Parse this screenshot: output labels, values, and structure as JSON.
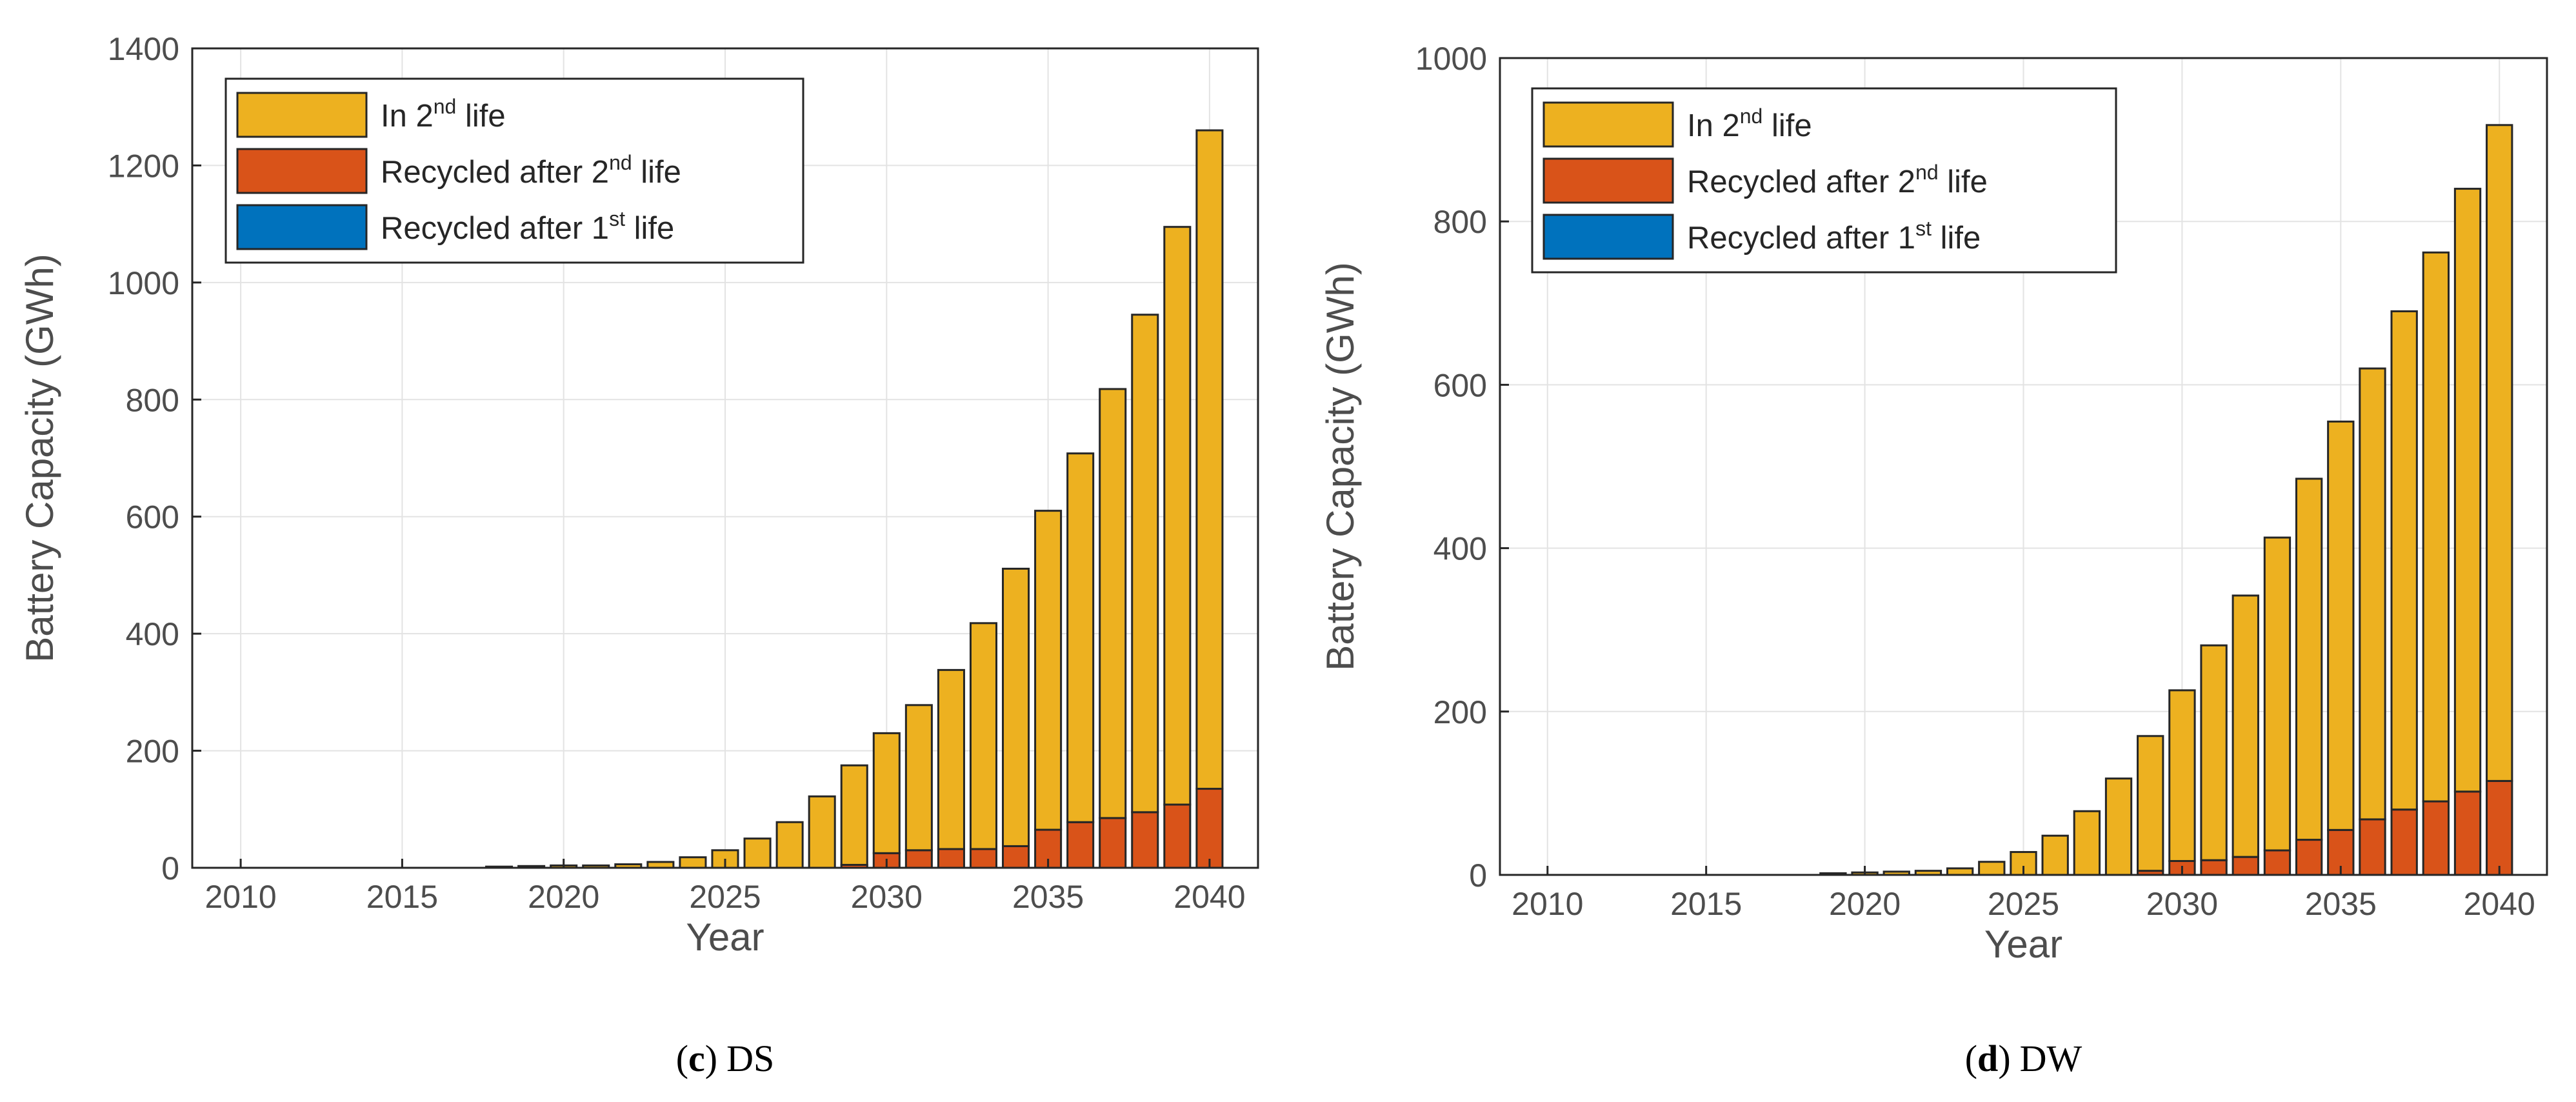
{
  "chart_data": [
    {
      "type": "bar",
      "stacked": true,
      "title": "",
      "xlabel": "Year",
      "ylabel": "Battery Capacity (GWh)",
      "xlim": [
        2008.5,
        2041.5
      ],
      "ylim": [
        0,
        1400
      ],
      "xticks": [
        "2010",
        "2015",
        "2020",
        "2025",
        "2030",
        "2035",
        "2040"
      ],
      "yticks": [
        "0",
        "200",
        "400",
        "600",
        "800",
        "1000",
        "1200",
        "1400"
      ],
      "grid": true,
      "legend_position": "top-left",
      "caption": {
        "open": "(",
        "letter": "c",
        "close": ")",
        "label": "DS"
      },
      "categories": [
        2018,
        2019,
        2020,
        2021,
        2022,
        2023,
        2024,
        2025,
        2026,
        2027,
        2028,
        2029,
        2030,
        2031,
        2032,
        2033,
        2034,
        2035,
        2036,
        2037,
        2038,
        2039,
        2040
      ],
      "series": [
        {
          "name": "Recycled after 1st life",
          "color": "#0072bd",
          "legend": {
            "pre": "Recycled  after  1",
            "sup": "st",
            "post": "  life"
          },
          "values": [
            0,
            0,
            0,
            0,
            0,
            0,
            0,
            0,
            0,
            0,
            0,
            0,
            0,
            0,
            0,
            0,
            0,
            0,
            0,
            0,
            0,
            0,
            0
          ]
        },
        {
          "name": "Recycled after 2nd life",
          "color": "#d95319",
          "legend": {
            "pre": "Recycled  after  2",
            "sup": "nd",
            "post": "  life"
          },
          "values": [
            0,
            0,
            0,
            0,
            0,
            0,
            0,
            0,
            0,
            0,
            0,
            5,
            25,
            30,
            32,
            32,
            37,
            65,
            78,
            85,
            95,
            108,
            135
          ]
        },
        {
          "name": "In 2nd life",
          "color": "#edb120",
          "legend": {
            "pre": "In  2",
            "sup": "nd",
            "post": "  life"
          },
          "values": [
            2,
            3,
            4,
            4,
            6,
            10,
            18,
            30,
            50,
            78,
            122,
            170,
            205,
            248,
            306,
            386,
            474,
            545,
            630,
            733,
            850,
            987,
            1125
          ]
        }
      ]
    },
    {
      "type": "bar",
      "stacked": true,
      "title": "",
      "xlabel": "Year",
      "ylabel": "Battery Capacity (GWh)",
      "xlim": [
        2008.5,
        2041.5
      ],
      "ylim": [
        0,
        1000
      ],
      "xticks": [
        "2010",
        "2015",
        "2020",
        "2025",
        "2030",
        "2035",
        "2040"
      ],
      "yticks": [
        "0",
        "200",
        "400",
        "600",
        "800",
        "1000"
      ],
      "grid": true,
      "legend_position": "top-left",
      "caption": {
        "open": "(",
        "letter": "d",
        "close": ")",
        "label": "DW"
      },
      "categories": [
        2019,
        2020,
        2021,
        2022,
        2023,
        2024,
        2025,
        2026,
        2027,
        2028,
        2029,
        2030,
        2031,
        2032,
        2033,
        2034,
        2035,
        2036,
        2037,
        2038,
        2039,
        2040
      ],
      "series": [
        {
          "name": "Recycled after 1st life",
          "color": "#0072bd",
          "legend": {
            "pre": "Recycled  after  1",
            "sup": "st",
            "post": "  life"
          },
          "values": [
            0,
            0,
            0,
            0,
            0,
            0,
            0,
            0,
            0,
            0,
            0,
            0,
            0,
            0,
            0,
            0,
            0,
            0,
            0,
            0,
            0,
            0
          ]
        },
        {
          "name": "Recycled after 2nd life",
          "color": "#d95319",
          "legend": {
            "pre": "Recycled  after  2",
            "sup": "nd",
            "post": "  life"
          },
          "values": [
            0,
            0,
            0,
            0,
            0,
            0,
            0,
            0,
            0,
            0,
            5,
            17,
            18,
            22,
            30,
            43,
            55,
            68,
            80,
            90,
            102,
            115
          ]
        },
        {
          "name": "In 2nd life",
          "color": "#edb120",
          "legend": {
            "pre": "In  2",
            "sup": "nd",
            "post": "  life"
          },
          "values": [
            2,
            3,
            4,
            5,
            8,
            16,
            28,
            48,
            78,
            118,
            165,
            209,
            263,
            320,
            383,
            442,
            500,
            552,
            610,
            672,
            738,
            803
          ]
        }
      ]
    }
  ]
}
